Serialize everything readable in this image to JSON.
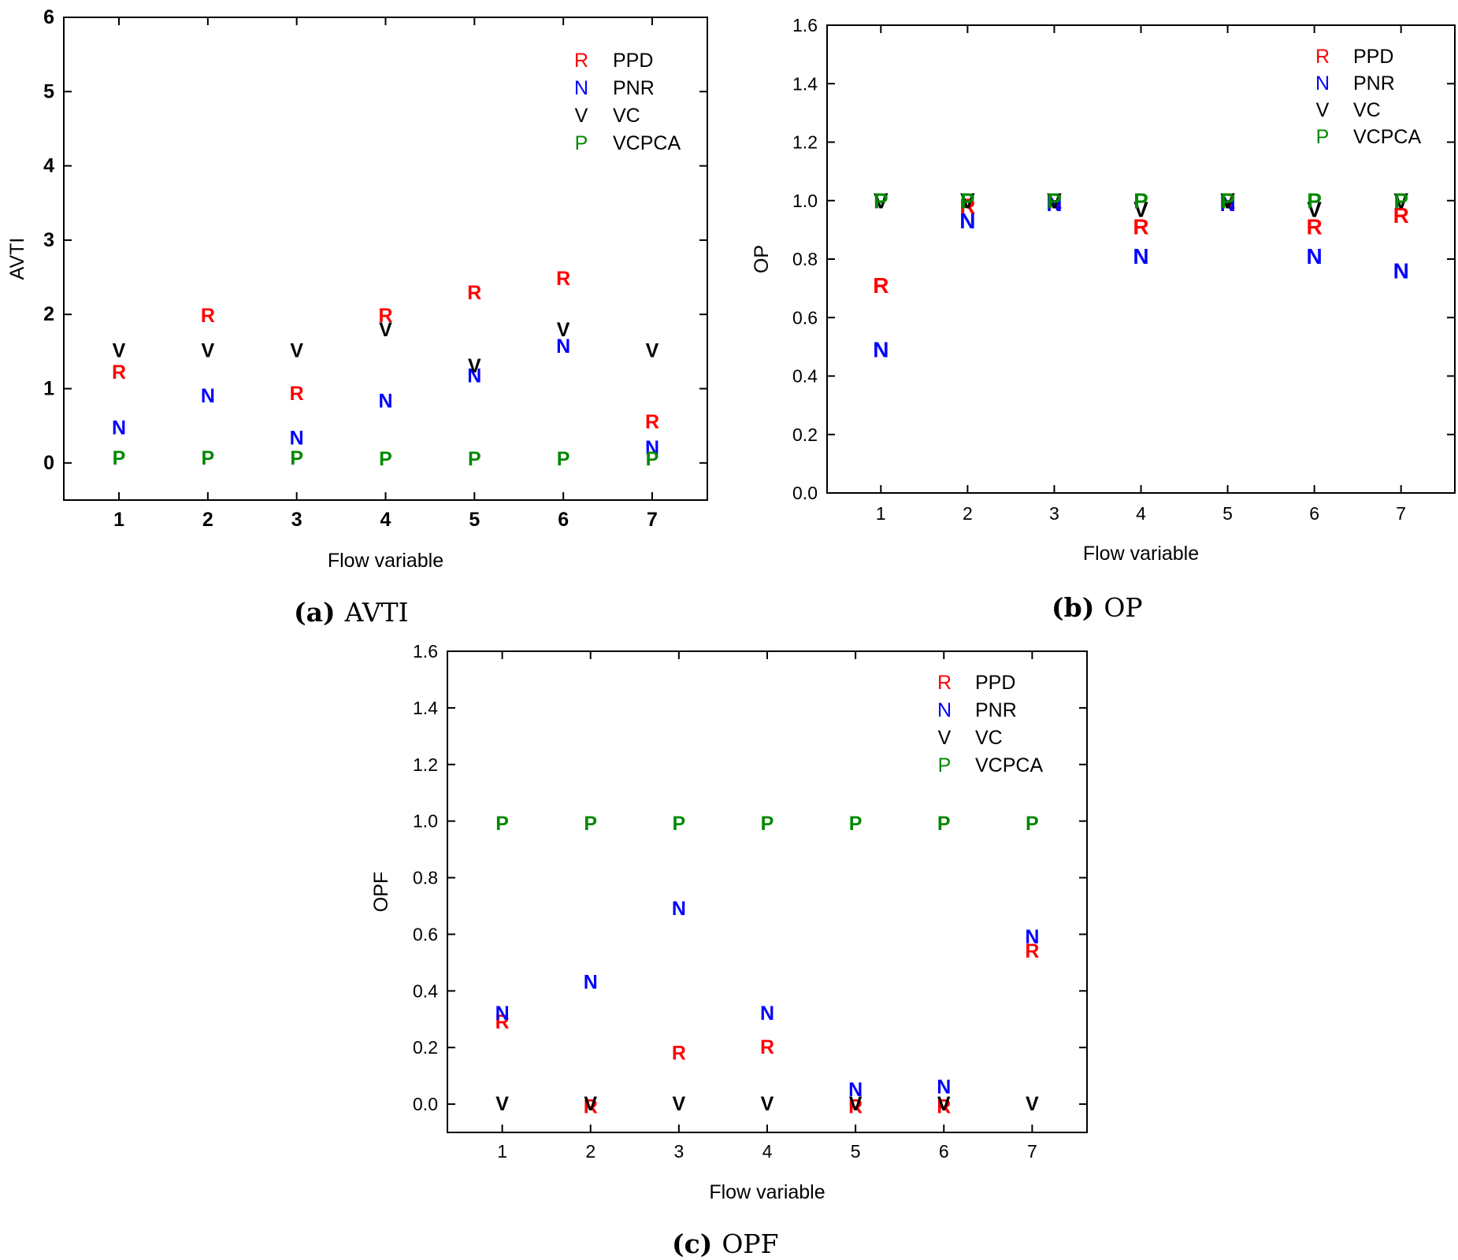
{
  "colors": {
    "R": "#ff0000",
    "N": "#0000ff",
    "V": "#000000",
    "P": "#008800"
  },
  "chart_data": [
    {
      "id": "avti",
      "type": "scatter",
      "caption_tag": "(a)",
      "caption_text": "AVTI",
      "xlabel": "Flow variable",
      "ylabel": "AVTI",
      "x": [
        1,
        2,
        3,
        4,
        5,
        6,
        7
      ],
      "xticks": [
        "1",
        "2",
        "3",
        "4",
        "5",
        "6",
        "7"
      ],
      "yticks": [
        "0",
        "1",
        "2",
        "3",
        "4",
        "5",
        "6"
      ],
      "ylim": [
        -0.5,
        6
      ],
      "legend_placement": "top-right",
      "grid": false,
      "series": [
        {
          "name": "PPD",
          "marker": "R",
          "values": [
            1.22,
            1.98,
            0.93,
            1.98,
            2.29,
            2.48,
            0.55
          ]
        },
        {
          "name": "PNR",
          "marker": "N",
          "values": [
            0.47,
            0.9,
            0.33,
            0.83,
            1.17,
            1.57,
            0.2
          ]
        },
        {
          "name": "VC",
          "marker": "V",
          "values": [
            1.51,
            1.51,
            1.51,
            1.79,
            1.3,
            1.79,
            1.51
          ]
        },
        {
          "name": "VCPCA",
          "marker": "P",
          "values": [
            0.06,
            0.06,
            0.06,
            0.05,
            0.05,
            0.05,
            0.05
          ]
        }
      ]
    },
    {
      "id": "op",
      "type": "scatter",
      "caption_tag": "(b)",
      "caption_text": "OP",
      "xlabel": "Flow variable",
      "ylabel": "OP",
      "x": [
        1,
        2,
        3,
        4,
        5,
        6,
        7
      ],
      "xticks": [
        "1",
        "2",
        "3",
        "4",
        "5",
        "6",
        "7"
      ],
      "yticks": [
        "0.0",
        "0.2",
        "0.4",
        "0.6",
        "0.8",
        "1.0",
        "1.2",
        "1.4",
        "1.6"
      ],
      "ylim": [
        0,
        1.6
      ],
      "legend_placement": "top-right",
      "grid": false,
      "series": [
        {
          "name": "PPD",
          "marker": "R",
          "values": [
            0.71,
            0.98,
            1.0,
            0.91,
            1.0,
            0.91,
            0.95
          ]
        },
        {
          "name": "PNR",
          "marker": "N",
          "values": [
            0.49,
            0.93,
            0.99,
            0.81,
            0.99,
            0.81,
            0.76
          ]
        },
        {
          "name": "VC",
          "marker": "V",
          "values": [
            1.0,
            1.0,
            1.0,
            0.97,
            1.0,
            0.97,
            1.0
          ]
        },
        {
          "name": "VCPCA",
          "marker": "P",
          "values": [
            1.0,
            1.0,
            1.0,
            1.0,
            1.0,
            1.0,
            1.0
          ]
        }
      ]
    },
    {
      "id": "opf",
      "type": "scatter",
      "caption_tag": "(c)",
      "caption_text": "OPF",
      "xlabel": "Flow variable",
      "ylabel": "OPF",
      "x": [
        1,
        2,
        3,
        4,
        5,
        6,
        7
      ],
      "xticks": [
        "1",
        "2",
        "3",
        "4",
        "5",
        "6",
        "7"
      ],
      "yticks": [
        "0.0",
        "0.2",
        "0.4",
        "0.6",
        "0.8",
        "1.0",
        "1.2",
        "1.4",
        "1.6"
      ],
      "ylim": [
        -0.1,
        1.6
      ],
      "legend_placement": "top-right",
      "grid": false,
      "series": [
        {
          "name": "PPD",
          "marker": "R",
          "values": [
            0.29,
            -0.01,
            0.18,
            0.2,
            -0.01,
            -0.01,
            0.54
          ]
        },
        {
          "name": "PNR",
          "marker": "N",
          "values": [
            0.32,
            0.43,
            0.69,
            0.32,
            0.05,
            0.06,
            0.59
          ]
        },
        {
          "name": "VC",
          "marker": "V",
          "values": [
            0.0,
            0.0,
            0.0,
            0.0,
            0.0,
            0.0,
            0.0
          ]
        },
        {
          "name": "VCPCA",
          "marker": "P",
          "values": [
            0.99,
            0.99,
            0.99,
            0.99,
            0.99,
            0.99,
            0.99
          ]
        }
      ]
    }
  ]
}
